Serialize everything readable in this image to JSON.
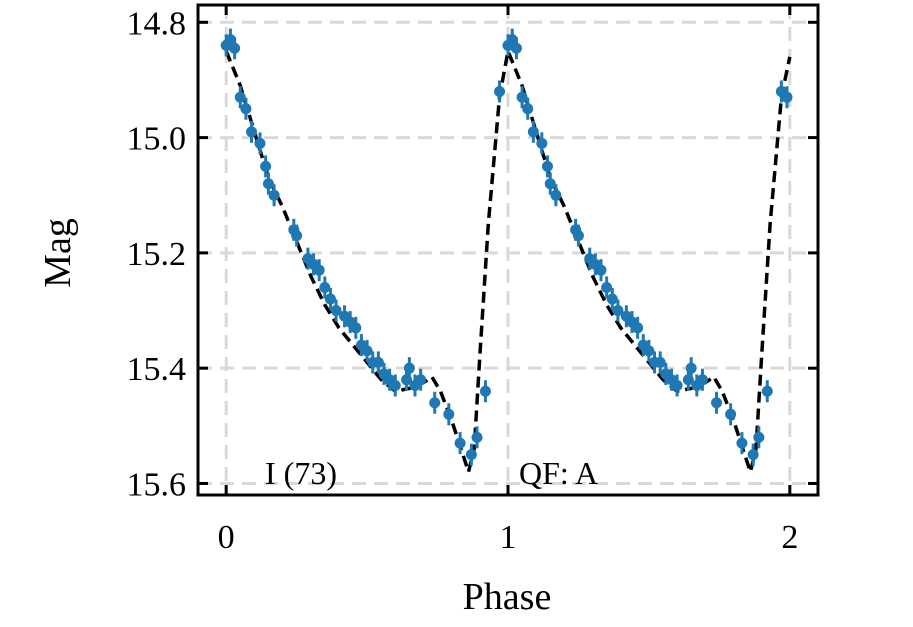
{
  "chart_data": {
    "type": "scatter",
    "title": "",
    "xlabel": "Phase",
    "ylabel": "Mag",
    "xlim": [
      -0.1,
      2.1
    ],
    "ylim": [
      15.62,
      14.77
    ],
    "y_inverted": true,
    "grid": true,
    "xticks": [
      "0",
      "1",
      "2"
    ],
    "xtick_values": [
      0,
      1,
      2
    ],
    "yticks": [
      "14.8",
      "15.0",
      "15.2",
      "15.4",
      "15.6"
    ],
    "ytick_values": [
      14.8,
      15.0,
      15.2,
      15.4,
      15.6
    ],
    "annotations": [
      "I (73)",
      "QF: A"
    ],
    "colors": {
      "points": "#1f77b4",
      "model": "#000000",
      "grid": "#d9d9d9"
    },
    "series": [
      {
        "kind": "points",
        "x": [
          0.0,
          0.015,
          0.03,
          0.05,
          0.07,
          0.09,
          0.12,
          0.14,
          0.15,
          0.17,
          0.24,
          0.25,
          0.29,
          0.31,
          0.33,
          0.35,
          0.37,
          0.39,
          0.42,
          0.44,
          0.46,
          0.48,
          0.5,
          0.52,
          0.54,
          0.56,
          0.58,
          0.6,
          0.64,
          0.65,
          0.67,
          0.69,
          0.74,
          0.79,
          0.83,
          0.87,
          0.89,
          0.92,
          0.97,
          1.0,
          1.015,
          1.03,
          1.05,
          1.07,
          1.09,
          1.12,
          1.14,
          1.15,
          1.17,
          1.24,
          1.25,
          1.29,
          1.31,
          1.33,
          1.35,
          1.37,
          1.39,
          1.42,
          1.44,
          1.46,
          1.48,
          1.5,
          1.52,
          1.54,
          1.56,
          1.58,
          1.6,
          1.64,
          1.65,
          1.67,
          1.69,
          1.74,
          1.79,
          1.83,
          1.87,
          1.89,
          1.92,
          1.97,
          1.99
        ],
        "y": [
          14.84,
          14.83,
          14.845,
          14.93,
          14.95,
          14.99,
          15.01,
          15.05,
          15.08,
          15.1,
          15.16,
          15.17,
          15.21,
          15.22,
          15.23,
          15.26,
          15.28,
          15.3,
          15.31,
          15.32,
          15.33,
          15.36,
          15.37,
          15.39,
          15.39,
          15.41,
          15.42,
          15.43,
          15.42,
          15.4,
          15.43,
          15.42,
          15.46,
          15.48,
          15.53,
          15.55,
          15.52,
          15.44,
          14.92,
          14.84,
          14.83,
          14.845,
          14.93,
          14.95,
          14.99,
          15.01,
          15.05,
          15.08,
          15.1,
          15.16,
          15.17,
          15.21,
          15.22,
          15.23,
          15.26,
          15.28,
          15.3,
          15.31,
          15.32,
          15.33,
          15.36,
          15.37,
          15.39,
          15.39,
          15.41,
          15.42,
          15.43,
          15.42,
          15.4,
          15.43,
          15.42,
          15.46,
          15.48,
          15.53,
          15.55,
          15.52,
          15.44,
          14.92,
          14.93
        ]
      },
      {
        "kind": "model",
        "style": "dashed",
        "x": [
          0.0,
          0.05,
          0.1,
          0.15,
          0.2,
          0.25,
          0.3,
          0.35,
          0.4,
          0.45,
          0.5,
          0.55,
          0.6,
          0.65,
          0.7,
          0.73,
          0.76,
          0.8,
          0.84,
          0.86,
          0.88,
          0.9,
          0.93,
          0.97,
          1.0,
          1.05,
          1.1,
          1.15,
          1.2,
          1.25,
          1.3,
          1.35,
          1.4,
          1.45,
          1.5,
          1.55,
          1.6,
          1.65,
          1.7,
          1.73,
          1.76,
          1.8,
          1.84,
          1.86,
          1.88,
          1.9,
          1.93,
          1.97,
          2.0
        ],
        "y": [
          14.85,
          14.91,
          14.99,
          15.07,
          15.12,
          15.18,
          15.24,
          15.29,
          15.33,
          15.36,
          15.39,
          15.42,
          15.44,
          15.435,
          15.425,
          15.415,
          15.44,
          15.49,
          15.55,
          15.58,
          15.54,
          15.38,
          15.15,
          14.93,
          14.85,
          14.91,
          14.99,
          15.07,
          15.12,
          15.18,
          15.24,
          15.29,
          15.33,
          15.36,
          15.39,
          15.42,
          15.44,
          15.435,
          15.425,
          15.415,
          15.44,
          15.49,
          15.55,
          15.58,
          15.54,
          15.38,
          15.15,
          14.93,
          14.86
        ]
      }
    ]
  }
}
